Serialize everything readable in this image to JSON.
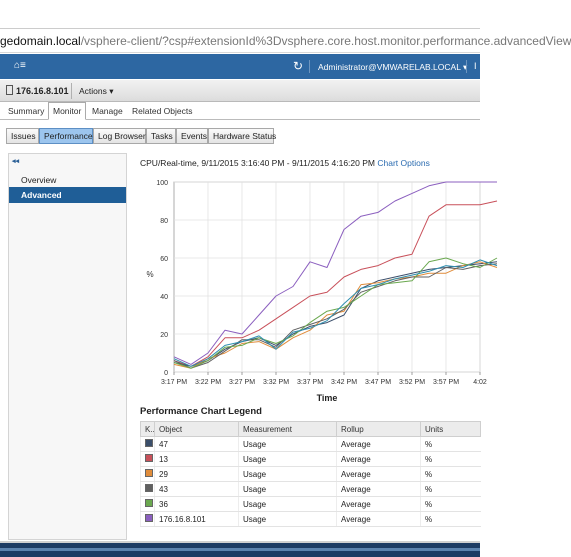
{
  "browser": {
    "url_domain": "gedomain.local",
    "url_rest": "/vsphere-client/?csp#extensionId%3Dvsphere.core.host.monitor.performance.advancedView"
  },
  "app_bar": {
    "home_icon": "home-icon",
    "user": "Administrator@VMWARELAB.LOCAL ▾",
    "help": "I"
  },
  "object_bar": {
    "host": "176.16.8.101",
    "actions": "Actions ▾"
  },
  "primary_tabs": [
    {
      "label": "Summary"
    },
    {
      "label": "Monitor",
      "active": true
    },
    {
      "label": "Manage"
    },
    {
      "label": "Related Objects"
    }
  ],
  "secondary_tabs": [
    {
      "label": "Issues"
    },
    {
      "label": "Performance",
      "active": true
    },
    {
      "label": "Log Browser"
    },
    {
      "label": "Tasks"
    },
    {
      "label": "Events"
    },
    {
      "label": "Hardware Status"
    }
  ],
  "left_nav": {
    "collapse": "◂◂",
    "items": [
      {
        "label": "Overview"
      },
      {
        "label": "Advanced",
        "selected": true
      }
    ]
  },
  "chart_header": {
    "title": "CPU/Real-time, 9/11/2015 3:16:40 PM - 9/11/2015 4:16:20 PM",
    "link": "Chart Options"
  },
  "chart_data": {
    "type": "line",
    "ylabel": "%",
    "xlabel": "Time",
    "ylim": [
      0,
      100
    ],
    "yticks": [
      0,
      20,
      40,
      60,
      80,
      100
    ],
    "x_categories": [
      "3:17 PM",
      "3:22 PM",
      "3:27 PM",
      "3:32 PM",
      "3:37 PM",
      "3:42 PM",
      "3:47 PM",
      "3:52 PM",
      "3:57 PM",
      "4:02"
    ],
    "x_points": [
      0,
      0.5,
      1,
      1.5,
      2,
      2.5,
      3,
      3.5,
      4,
      4.5,
      5,
      5.5,
      6,
      6.5,
      7,
      7.5,
      8,
      8.5,
      9,
      9.5
    ],
    "grid": true,
    "series": [
      {
        "name": "176.16.8.101",
        "color": "#8b5fbf",
        "values": [
          8,
          4,
          10,
          22,
          20,
          30,
          40,
          45,
          58,
          55,
          75,
          82,
          84,
          90,
          94,
          98,
          100,
          100,
          100,
          100
        ]
      },
      {
        "name": "13",
        "color": "#c8505a",
        "values": [
          6,
          3,
          8,
          18,
          18,
          22,
          28,
          34,
          40,
          42,
          50,
          54,
          56,
          60,
          62,
          82,
          88,
          88,
          88,
          90
        ]
      },
      {
        "name": "47",
        "color": "#3a4e6a",
        "values": [
          5,
          3,
          6,
          12,
          16,
          18,
          14,
          20,
          24,
          26,
          30,
          44,
          48,
          50,
          52,
          54,
          55,
          56,
          57,
          58
        ]
      },
      {
        "name": "29",
        "color": "#e08c3a",
        "values": [
          4,
          2,
          7,
          10,
          15,
          16,
          12,
          18,
          22,
          30,
          32,
          46,
          47,
          49,
          50,
          52,
          52,
          56,
          58,
          55
        ]
      },
      {
        "name": "43",
        "color": "#606060",
        "values": [
          6,
          2,
          5,
          11,
          17,
          17,
          13,
          22,
          25,
          28,
          33,
          42,
          45,
          48,
          50,
          50,
          55,
          54,
          56,
          57
        ]
      },
      {
        "name": "36",
        "color": "#6aa84f",
        "values": [
          5,
          2,
          6,
          13,
          14,
          18,
          15,
          19,
          26,
          32,
          34,
          40,
          46,
          47,
          48,
          58,
          60,
          57,
          55,
          60
        ]
      },
      {
        "name": "",
        "color": "#2f8fb0",
        "values": [
          7,
          3,
          7,
          14,
          16,
          19,
          12,
          21,
          23,
          27,
          36,
          44,
          46,
          49,
          51,
          53,
          56,
          55,
          59,
          56
        ]
      }
    ]
  },
  "legend_title": "Performance Chart Legend",
  "legend": {
    "headers": [
      "K..",
      "Object",
      "Measurement",
      "Rollup",
      "Units"
    ],
    "rows": [
      {
        "color": "#3a4e6a",
        "object": "47",
        "measurement": "Usage",
        "rollup": "Average",
        "units": "%"
      },
      {
        "color": "#c8505a",
        "object": "13",
        "measurement": "Usage",
        "rollup": "Average",
        "units": "%"
      },
      {
        "color": "#e08c3a",
        "object": "29",
        "measurement": "Usage",
        "rollup": "Average",
        "units": "%"
      },
      {
        "color": "#606060",
        "object": "43",
        "measurement": "Usage",
        "rollup": "Average",
        "units": "%"
      },
      {
        "color": "#6aa84f",
        "object": "36",
        "measurement": "Usage",
        "rollup": "Average",
        "units": "%"
      },
      {
        "color": "#8b5fbf",
        "object": "176.16.8.101",
        "measurement": "Usage",
        "rollup": "Average",
        "units": "%"
      }
    ]
  }
}
